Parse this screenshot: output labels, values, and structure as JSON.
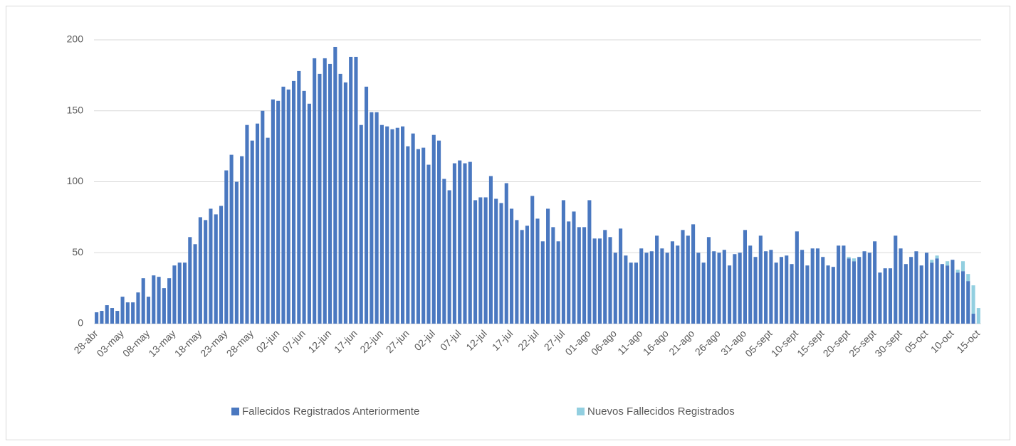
{
  "chart_data": {
    "type": "stacked-bar",
    "categories": [
      "28-abr",
      null,
      null,
      null,
      null,
      "03-may",
      null,
      null,
      null,
      null,
      "08-may",
      null,
      null,
      null,
      null,
      "13-may",
      null,
      null,
      null,
      null,
      "18-may",
      null,
      null,
      null,
      null,
      "23-may",
      null,
      null,
      null,
      null,
      "28-may",
      null,
      null,
      null,
      null,
      "02-jun",
      null,
      null,
      null,
      null,
      "07-jun",
      null,
      null,
      null,
      null,
      "12-jun",
      null,
      null,
      null,
      null,
      "17-jun",
      null,
      null,
      null,
      null,
      "22-jun",
      null,
      null,
      null,
      null,
      "27-jun",
      null,
      null,
      null,
      null,
      "02-jul",
      null,
      null,
      null,
      null,
      "07-jul",
      null,
      null,
      null,
      null,
      "12-jul",
      null,
      null,
      null,
      null,
      "17-jul",
      null,
      null,
      null,
      null,
      "22-jul",
      null,
      null,
      null,
      null,
      "27-jul",
      null,
      null,
      null,
      null,
      "01-ago",
      null,
      null,
      null,
      null,
      "06-ago",
      null,
      null,
      null,
      null,
      "11-ago",
      null,
      null,
      null,
      null,
      "16-ago",
      null,
      null,
      null,
      null,
      "21-ago",
      null,
      null,
      null,
      null,
      "26-ago",
      null,
      null,
      null,
      null,
      "31-ago",
      null,
      null,
      null,
      null,
      "05-sept",
      null,
      null,
      null,
      null,
      "10-sept",
      null,
      null,
      null,
      null,
      "15-sept",
      null,
      null,
      null,
      null,
      "20-sept",
      null,
      null,
      null,
      null,
      "25-sept",
      null,
      null,
      null,
      null,
      "30-sept",
      null,
      null,
      null,
      null,
      "05-oct",
      null,
      null,
      null,
      null,
      "10-oct",
      null,
      null,
      null,
      null,
      "15-oct"
    ],
    "series": [
      {
        "name": "Fallecidos Registrados Anteriormente",
        "color": "#4a78c0",
        "values": [
          8,
          9,
          13,
          11,
          9,
          19,
          15,
          15,
          22,
          32,
          19,
          34,
          33,
          25,
          32,
          41,
          43,
          43,
          61,
          56,
          75,
          73,
          81,
          77,
          83,
          108,
          119,
          100,
          118,
          140,
          129,
          141,
          150,
          131,
          158,
          157,
          167,
          165,
          171,
          178,
          164,
          155,
          187,
          176,
          187,
          183,
          195,
          176,
          170,
          188,
          188,
          140,
          167,
          149,
          149,
          140,
          139,
          137,
          138,
          139,
          125,
          134,
          123,
          124,
          112,
          133,
          129,
          102,
          94,
          113,
          115,
          113,
          114,
          87,
          89,
          89,
          104,
          88,
          85,
          99,
          81,
          73,
          66,
          69,
          90,
          74,
          58,
          81,
          68,
          58,
          87,
          72,
          79,
          68,
          68,
          87,
          60,
          60,
          66,
          61,
          50,
          67,
          48,
          43,
          43,
          53,
          50,
          51,
          62,
          53,
          50,
          58,
          55,
          66,
          62,
          70,
          50,
          43,
          61,
          51,
          50,
          52,
          41,
          49,
          50,
          66,
          55,
          47,
          62,
          51,
          52,
          43,
          47,
          48,
          42,
          65,
          52,
          41,
          53,
          53,
          47,
          41,
          40,
          55,
          55,
          46,
          44,
          47,
          51,
          50,
          58,
          36,
          39,
          39,
          62,
          53,
          42,
          47,
          51,
          41,
          50,
          43,
          46,
          42,
          41,
          45,
          36,
          37,
          30,
          7,
          0
        ]
      },
      {
        "name": "Nuevos Fallecidos Registrados",
        "color": "#92cfe0",
        "values": [
          0,
          0,
          0,
          0,
          0,
          0,
          0,
          0,
          0,
          0,
          0,
          0,
          0,
          0,
          0,
          0,
          0,
          0,
          0,
          0,
          0,
          0,
          0,
          0,
          0,
          0,
          0,
          0,
          0,
          0,
          0,
          0,
          0,
          0,
          0,
          0,
          0,
          0,
          0,
          0,
          0,
          0,
          0,
          0,
          0,
          0,
          0,
          0,
          0,
          0,
          0,
          0,
          0,
          0,
          0,
          0,
          0,
          0,
          0,
          0,
          0,
          0,
          0,
          0,
          0,
          0,
          0,
          0,
          0,
          0,
          0,
          0,
          0,
          0,
          0,
          0,
          0,
          0,
          0,
          0,
          0,
          0,
          0,
          0,
          0,
          0,
          0,
          0,
          0,
          0,
          0,
          0,
          0,
          0,
          0,
          0,
          0,
          0,
          0,
          0,
          0,
          0,
          0,
          0,
          0,
          0,
          0,
          0,
          0,
          0,
          0,
          0,
          0,
          0,
          0,
          0,
          0,
          0,
          0,
          0,
          0,
          0,
          0,
          0,
          0,
          0,
          0,
          0,
          0,
          0,
          0,
          0,
          0,
          0,
          0,
          0,
          0,
          0,
          0,
          0,
          0,
          0,
          0,
          0,
          0,
          1,
          2,
          0,
          0,
          0,
          0,
          0,
          0,
          0,
          0,
          0,
          0,
          0,
          0,
          0,
          0,
          2,
          2,
          0,
          3,
          0,
          2,
          7,
          5,
          20,
          11
        ]
      }
    ],
    "ylim": [
      0,
      200
    ],
    "yticks": [
      0,
      50,
      100,
      150,
      200
    ],
    "grid": true,
    "legend": "bottom"
  }
}
